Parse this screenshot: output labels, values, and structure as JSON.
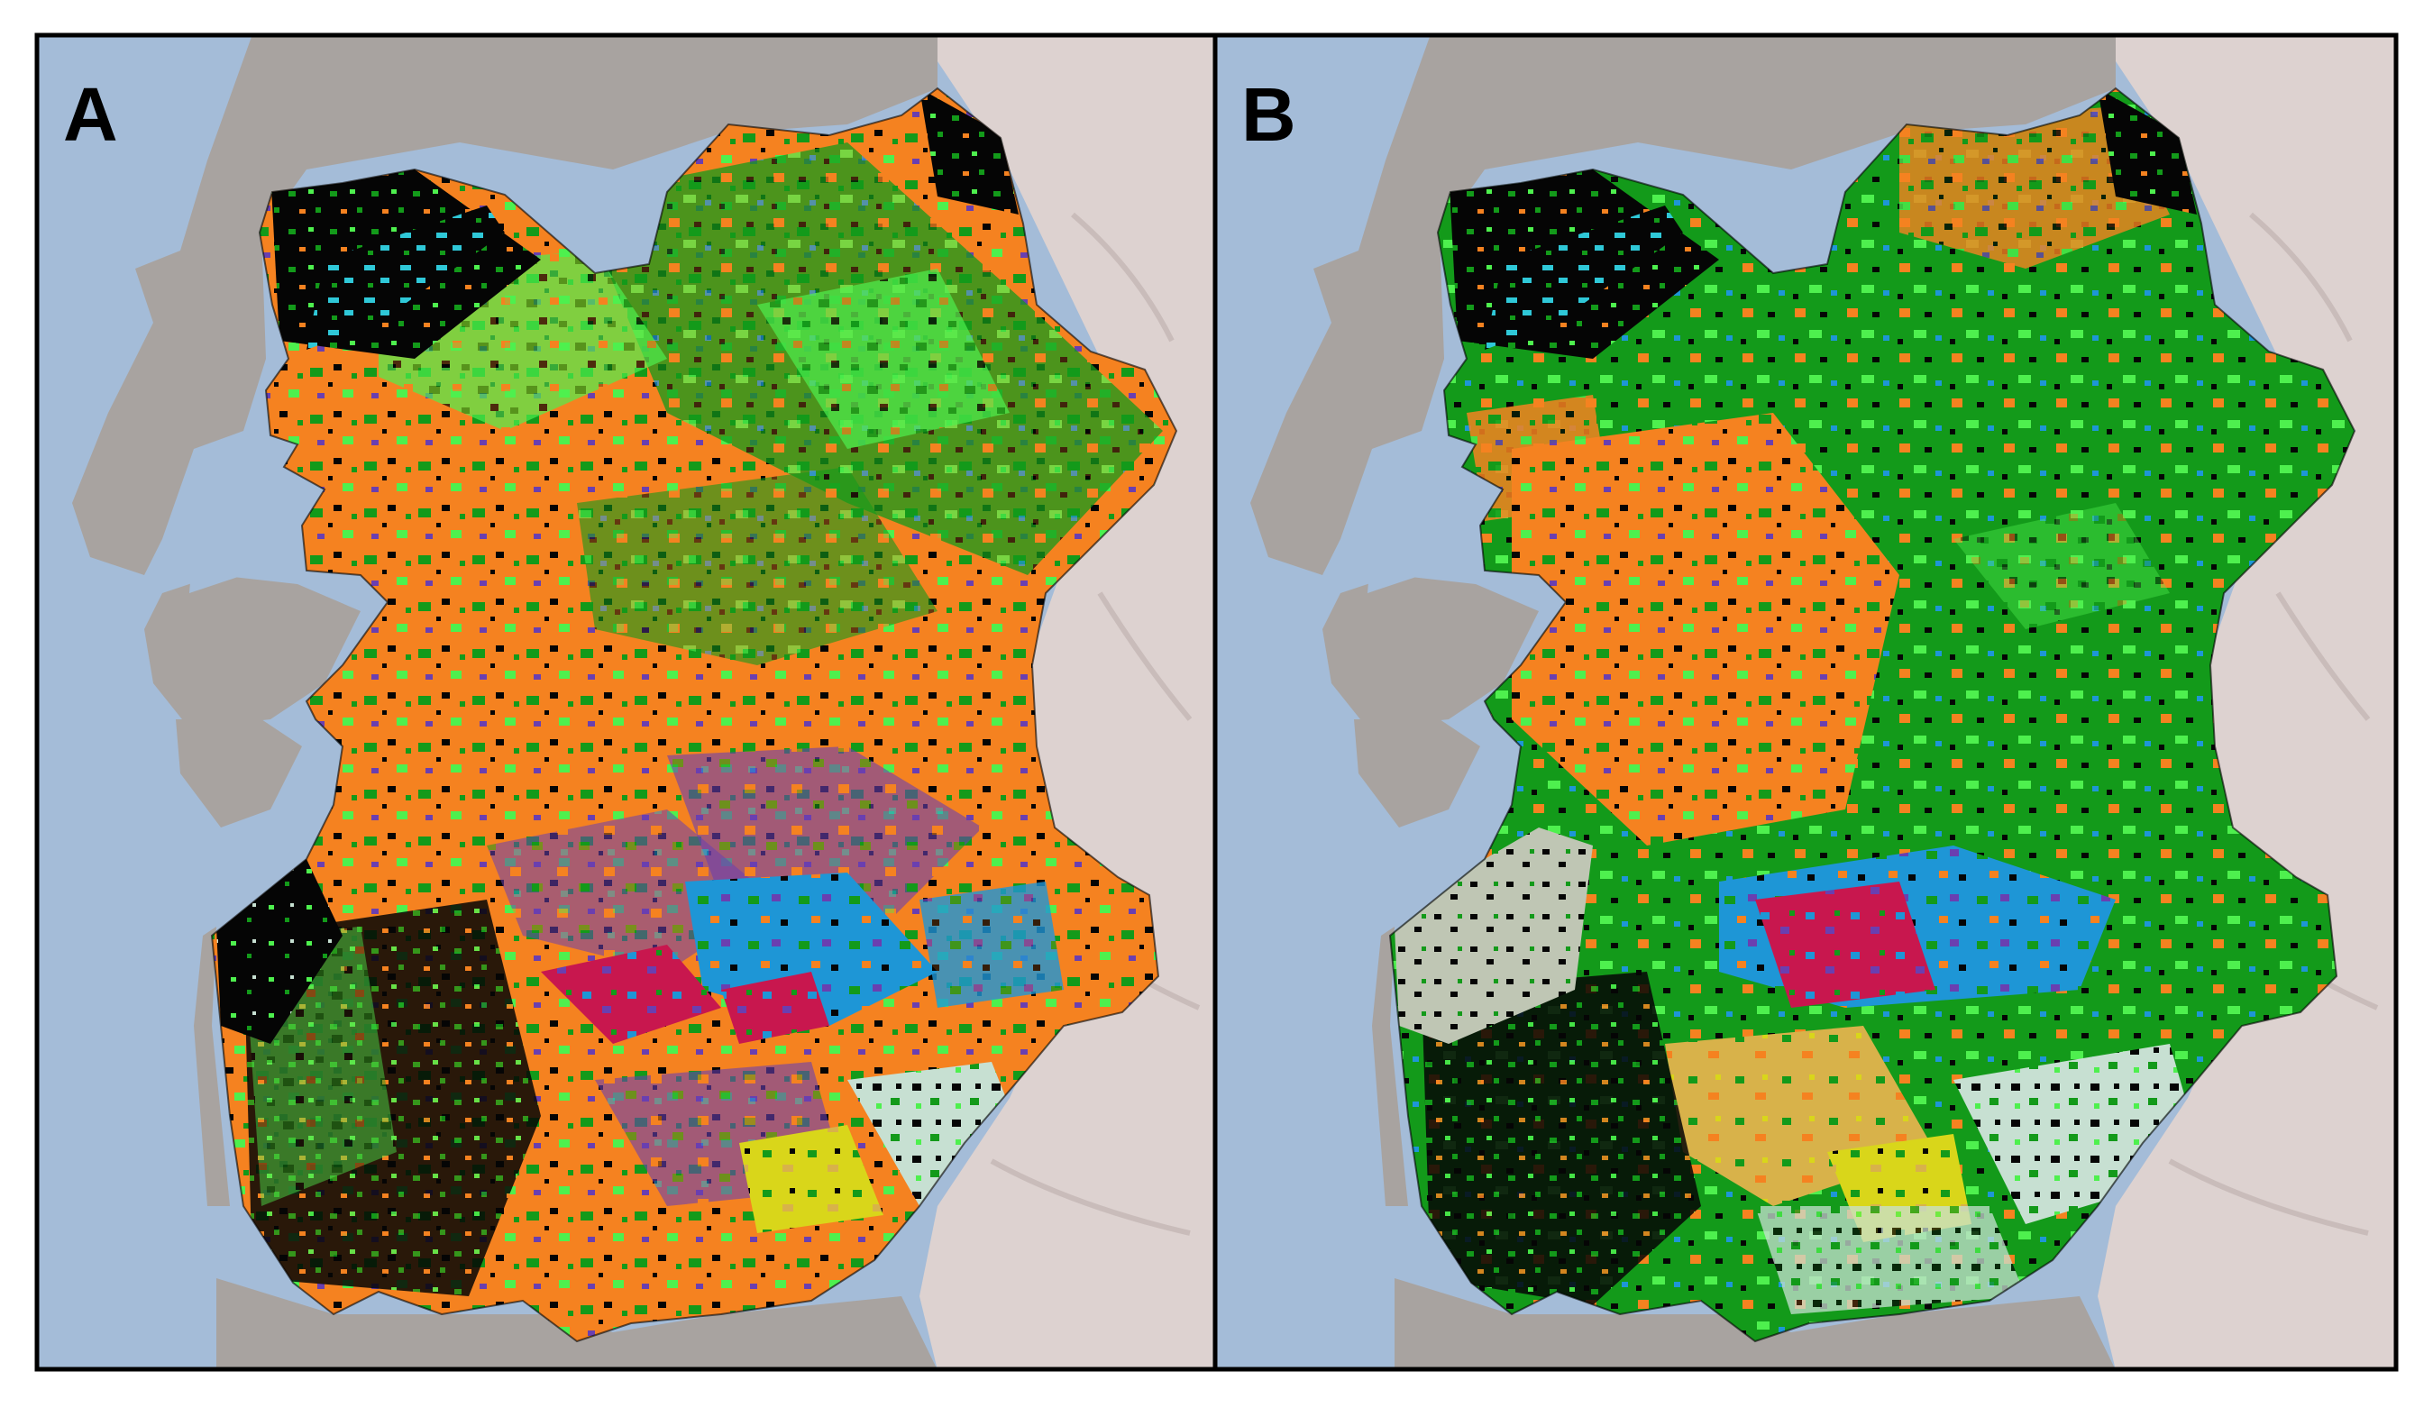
{
  "figure": {
    "panels": [
      {
        "label": "A",
        "dominant_class_color": "#f58220"
      },
      {
        "label": "B",
        "dominant_class_color": "#139a1a"
      }
    ]
  },
  "colors": {
    "sea": "#a4bcd8",
    "land_west": "#a8a3a0",
    "land_east": "#ddd2d0",
    "frame": "#000000",
    "orange": "#f58220",
    "green": "#139a1a",
    "light_green": "#4ef04e",
    "blue": "#1e96d6",
    "purple": "#6a3fb0",
    "crimson": "#c8174e",
    "yellow": "#d9d61a",
    "tan": "#d8b24a",
    "pale": "#c7e0d2",
    "cyan": "#2fc8d8",
    "magenta": "#e030c8",
    "black": "#050505"
  }
}
